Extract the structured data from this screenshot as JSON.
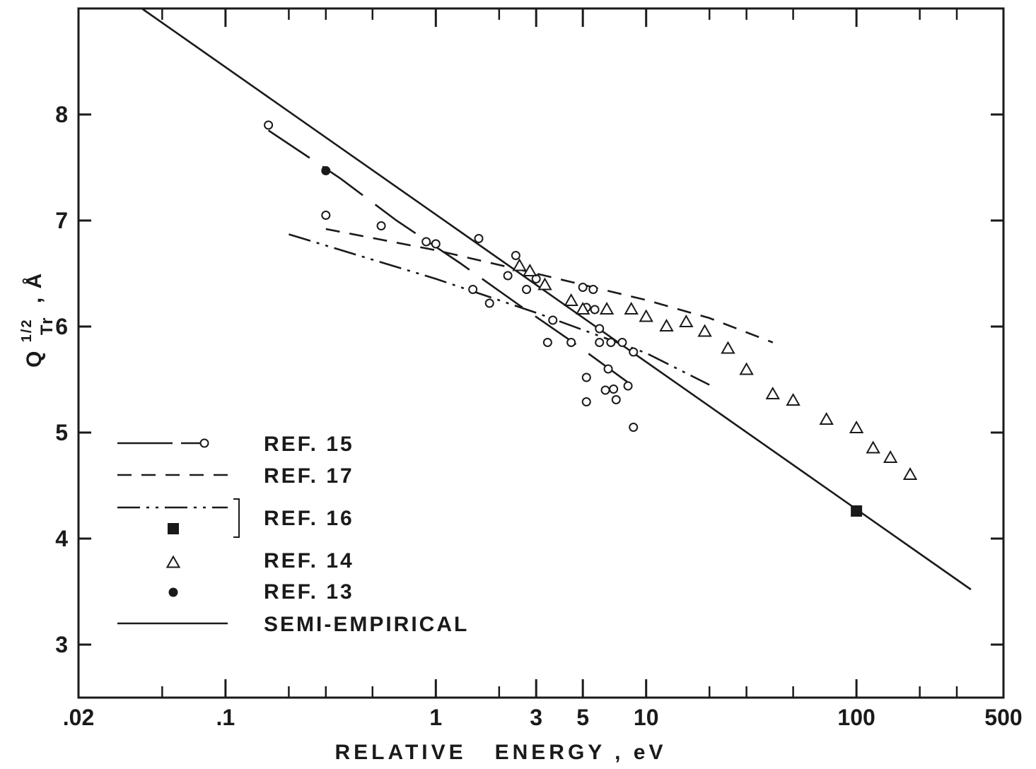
{
  "chart_data": {
    "type": "scatter",
    "x_scale": "log",
    "xlim": [
      0.02,
      500
    ],
    "ylim": [
      2.5,
      9.0
    ],
    "x_ticks": [
      {
        "value": 0.02,
        "label": ".02"
      },
      {
        "value": 0.1,
        "label": ".1"
      },
      {
        "value": 1,
        "label": "1"
      },
      {
        "value": 3,
        "label": "3"
      },
      {
        "value": 5,
        "label": "5"
      },
      {
        "value": 10,
        "label": "10"
      },
      {
        "value": 100,
        "label": "100"
      },
      {
        "value": 500,
        "label": "500"
      }
    ],
    "x_minor_ticks": [
      0.05,
      0.2,
      0.3,
      0.5,
      2,
      20,
      30,
      50,
      200,
      300
    ],
    "y_ticks": [
      {
        "value": 3,
        "label": "3"
      },
      {
        "value": 4,
        "label": "4"
      },
      {
        "value": 5,
        "label": "5"
      },
      {
        "value": 6,
        "label": "6"
      },
      {
        "value": 7,
        "label": "7"
      },
      {
        "value": 8,
        "label": "8"
      }
    ],
    "xlabel": "RELATIVE   ENERGY , eV",
    "ylabel_main": "Q",
    "ylabel_sup": "1/2",
    "ylabel_sub": "Tr",
    "ylabel_unit": ", Å",
    "series": [
      {
        "name": "REF. 15",
        "style": "long-dash-open-circle",
        "line": [
          [
            0.16,
            7.85
          ],
          [
            0.35,
            7.4
          ],
          [
            0.65,
            7.0
          ],
          [
            1.3,
            6.6
          ],
          [
            2.5,
            6.2
          ],
          [
            4.5,
            5.85
          ],
          [
            8.5,
            5.45
          ]
        ],
        "points": [
          [
            0.16,
            7.9
          ],
          [
            0.3,
            7.05
          ],
          [
            0.55,
            6.95
          ],
          [
            0.9,
            6.8
          ],
          [
            1.0,
            6.78
          ],
          [
            1.5,
            6.35
          ],
          [
            1.6,
            6.83
          ],
          [
            1.8,
            6.22
          ],
          [
            2.2,
            6.48
          ],
          [
            2.4,
            6.67
          ],
          [
            2.7,
            6.35
          ],
          [
            3.0,
            6.45
          ],
          [
            3.4,
            5.85
          ],
          [
            3.6,
            6.06
          ],
          [
            4.4,
            5.85
          ],
          [
            5.0,
            6.37
          ],
          [
            5.2,
            6.18
          ],
          [
            5.2,
            5.52
          ],
          [
            5.6,
            6.35
          ],
          [
            5.7,
            6.16
          ],
          [
            5.2,
            5.29
          ],
          [
            6.0,
            5.98
          ],
          [
            6.0,
            5.85
          ],
          [
            6.6,
            5.6
          ],
          [
            6.4,
            5.4
          ],
          [
            6.8,
            5.85
          ],
          [
            7.0,
            5.41
          ],
          [
            7.2,
            5.31
          ],
          [
            7.7,
            5.85
          ],
          [
            8.2,
            5.44
          ],
          [
            8.7,
            5.76
          ],
          [
            8.7,
            5.05
          ]
        ]
      },
      {
        "name": "REF. 17",
        "style": "dashed",
        "line": [
          [
            0.3,
            6.92
          ],
          [
            1.0,
            6.72
          ],
          [
            3.0,
            6.5
          ],
          [
            10.0,
            6.25
          ],
          [
            20.0,
            6.08
          ],
          [
            40.0,
            5.85
          ]
        ]
      },
      {
        "name": "REF. 16",
        "style": "dash-dot-dot",
        "line": [
          [
            0.2,
            6.87
          ],
          [
            1.0,
            6.45
          ],
          [
            3.0,
            6.13
          ],
          [
            10.0,
            5.75
          ],
          [
            20.0,
            5.45
          ]
        ]
      },
      {
        "name": "REF. 16",
        "style": "filled-square",
        "points": [
          [
            100,
            4.26
          ]
        ]
      },
      {
        "name": "REF. 14",
        "style": "open-triangle",
        "points": [
          [
            2.5,
            6.58
          ],
          [
            2.8,
            6.53
          ],
          [
            3.3,
            6.4
          ],
          [
            4.4,
            6.25
          ],
          [
            5.0,
            6.17
          ],
          [
            6.5,
            6.17
          ],
          [
            8.5,
            6.17
          ],
          [
            10.0,
            6.1
          ],
          [
            12.5,
            6.01
          ],
          [
            15.5,
            6.05
          ],
          [
            19.0,
            5.96
          ],
          [
            24.5,
            5.8
          ],
          [
            30.0,
            5.6
          ],
          [
            40.0,
            5.37
          ],
          [
            50.0,
            5.31
          ],
          [
            72.0,
            5.13
          ],
          [
            100.0,
            5.05
          ],
          [
            120.0,
            4.86
          ],
          [
            145.0,
            4.77
          ],
          [
            180.0,
            4.61
          ]
        ]
      },
      {
        "name": "REF. 13",
        "style": "filled-circle",
        "points": [
          [
            0.3,
            7.47
          ]
        ]
      },
      {
        "name": "SEMI-EMPIRICAL",
        "style": "solid",
        "line": [
          [
            0.04,
            9.0
          ],
          [
            350,
            3.52
          ]
        ]
      }
    ],
    "legend": {
      "placement": "bottom-left",
      "bracket_groups_ref16": true,
      "entries": [
        {
          "label": "REF. 15",
          "marker": "long-dash-open-circle"
        },
        {
          "label": "REF. 17",
          "marker": "dashed"
        },
        {
          "label": "REF. 16",
          "marker": "dash-dot-dot"
        },
        {
          "label": "",
          "marker": "filled-square"
        },
        {
          "label": "REF. 14",
          "marker": "open-triangle"
        },
        {
          "label": "REF. 13",
          "marker": "filled-circle"
        },
        {
          "label": "SEMI-EMPIRICAL",
          "marker": "solid"
        }
      ]
    },
    "grid": false
  }
}
